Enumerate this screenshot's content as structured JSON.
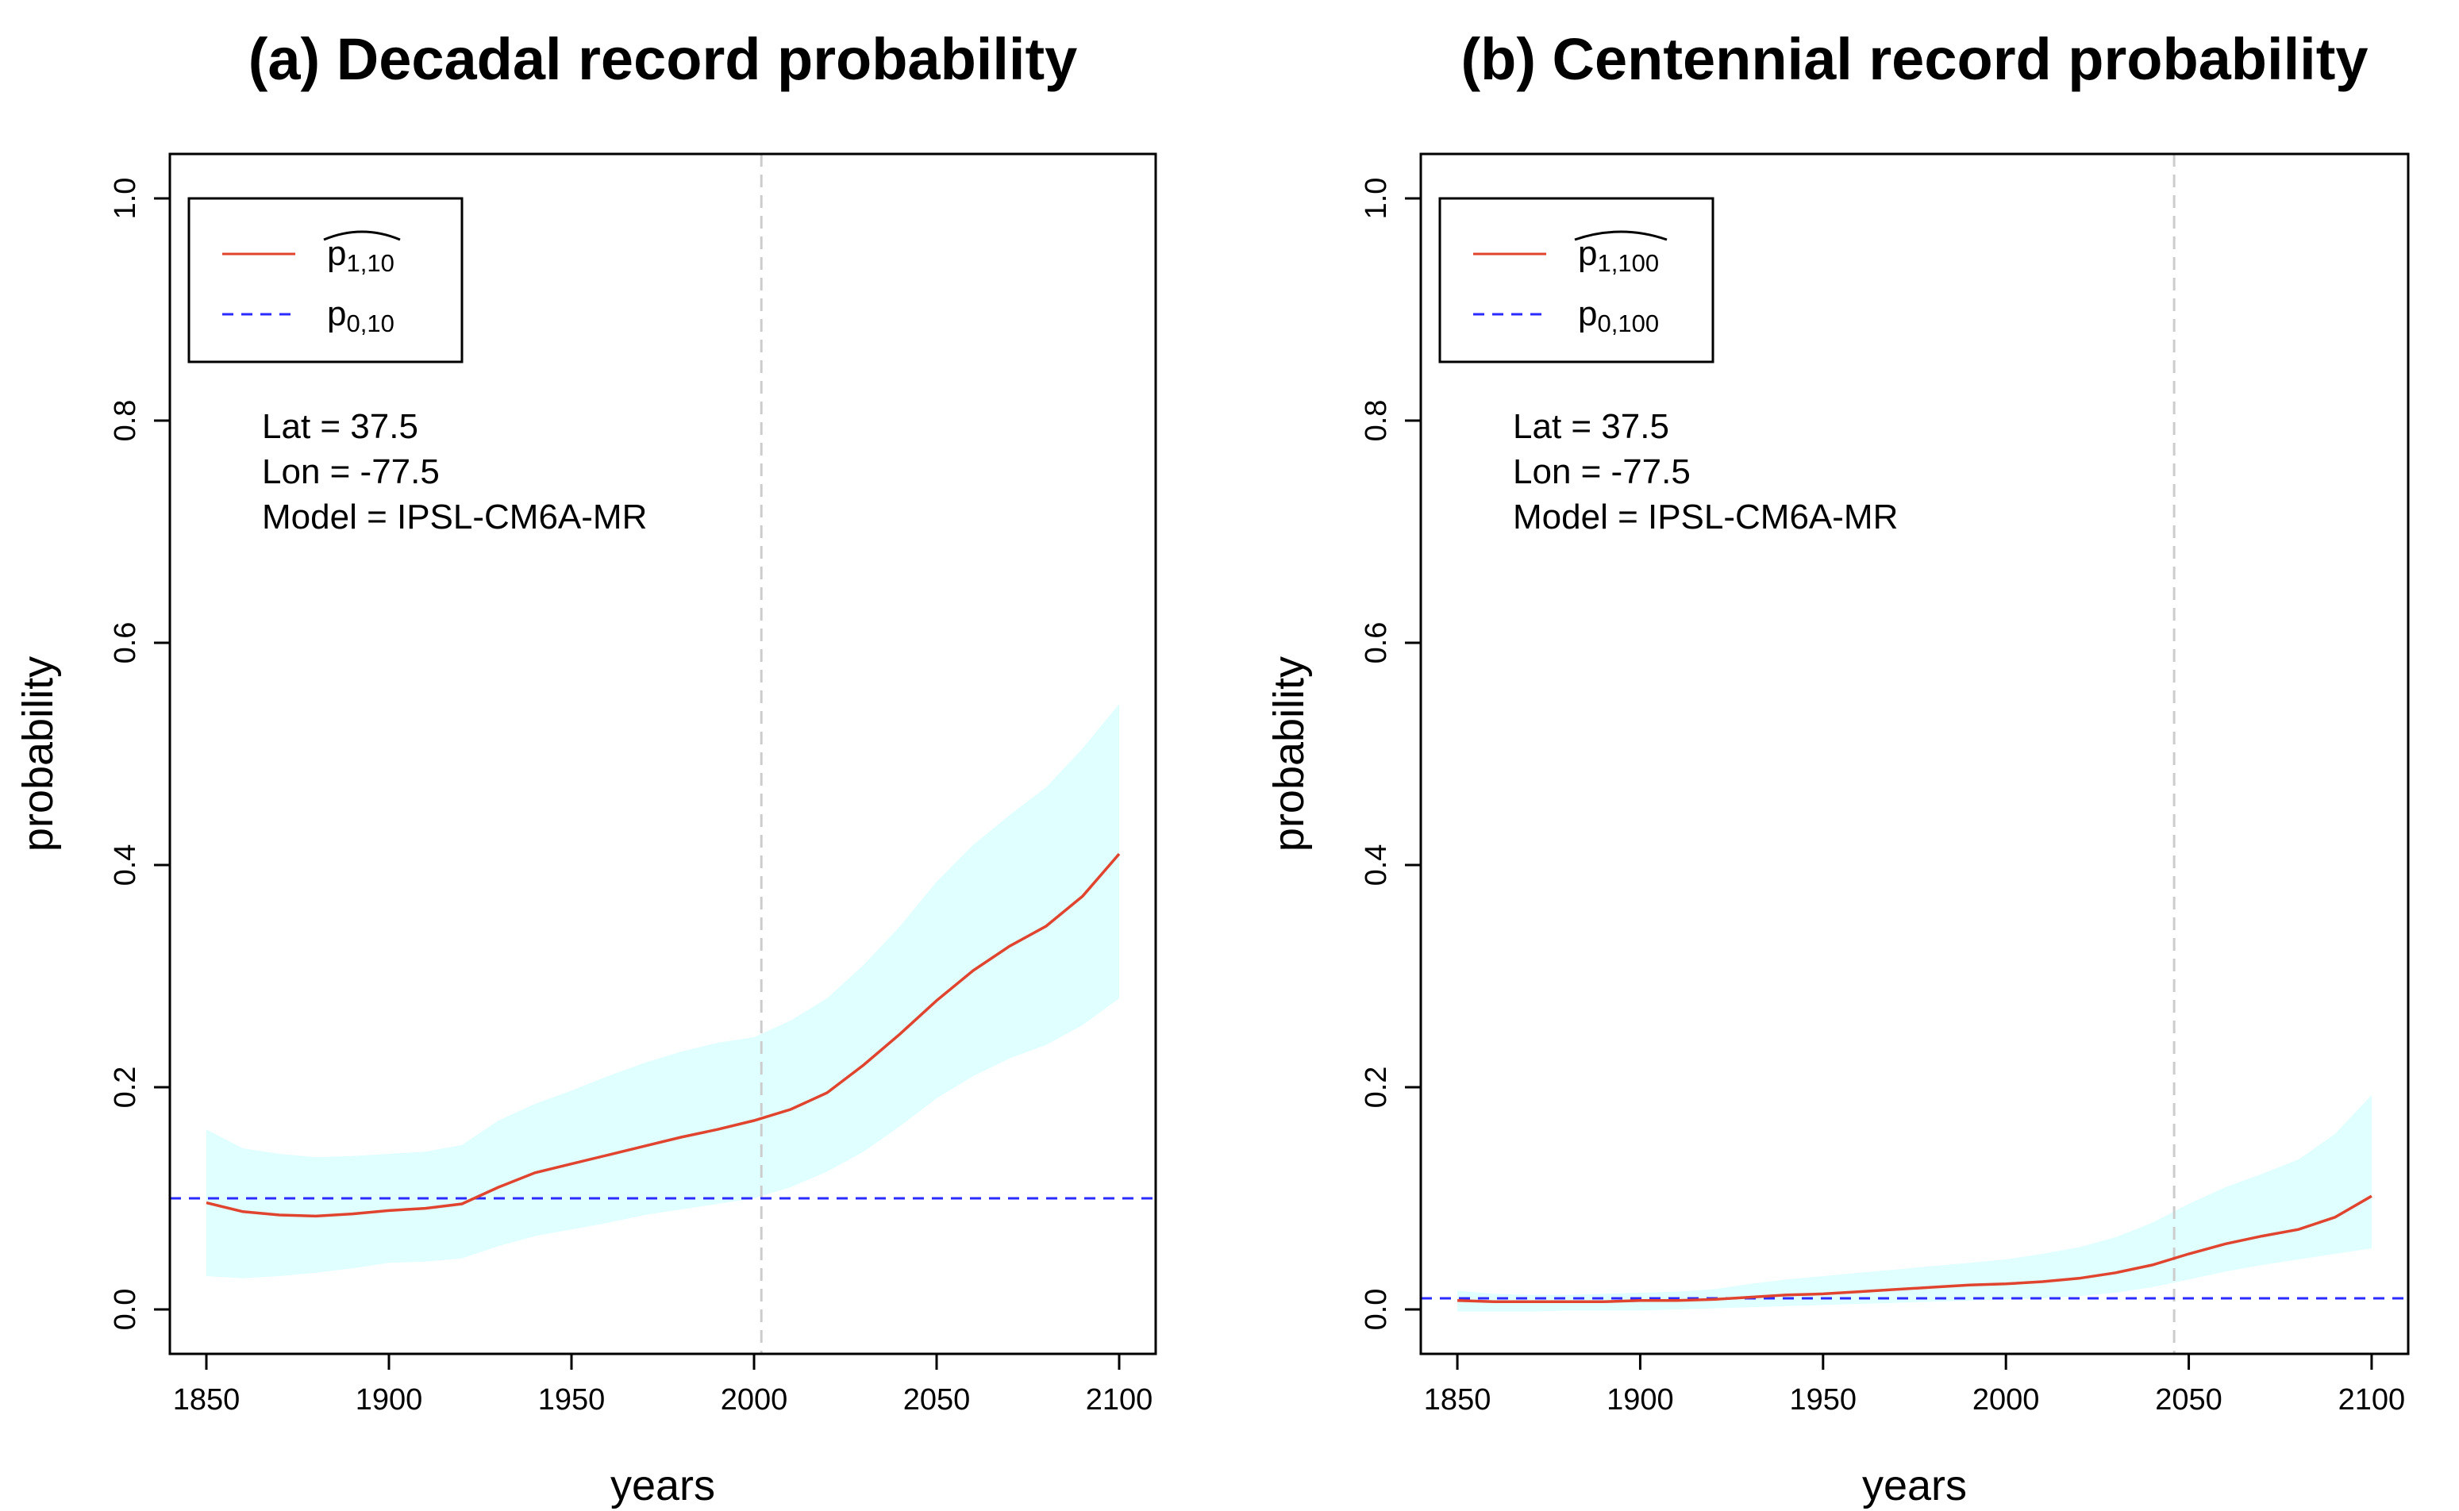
{
  "figure": {
    "xlabel": "years",
    "ylabel": "probability"
  },
  "chart_data": [
    {
      "type": "line",
      "title": "(a) Decadal record probability",
      "xlabel": "years",
      "ylabel": "probability",
      "xlim": [
        1840,
        2110
      ],
      "ylim": [
        -0.04,
        1.04
      ],
      "x_ticks": [
        "1850",
        "1900",
        "1950",
        "2000",
        "2050",
        "2100"
      ],
      "y_ticks": [
        "0.0",
        "0.2",
        "0.4",
        "0.6",
        "0.8",
        "1.0"
      ],
      "annotations": [
        "Lat = 37.5",
        "Lon = -77.5",
        "Model = IPSL-CM6A-MR"
      ],
      "legend": {
        "position": "top-left",
        "entries": [
          {
            "symbol": "p",
            "subscript": "1,10",
            "hat": true,
            "style": "solid",
            "color": "#e0442f"
          },
          {
            "symbol": "p",
            "subscript": "0,10",
            "hat": false,
            "style": "dashed",
            "color": "#2b2bff"
          }
        ]
      },
      "vline": {
        "x": 2002,
        "color": "#cccccc",
        "style": "dashed"
      },
      "hline": {
        "y": 0.1,
        "color": "#2b2bff",
        "style": "dashed"
      },
      "x": [
        1850,
        1860,
        1870,
        1880,
        1890,
        1900,
        1910,
        1920,
        1930,
        1940,
        1950,
        1960,
        1970,
        1980,
        1990,
        2000,
        2010,
        2020,
        2030,
        2040,
        2050,
        2060,
        2070,
        2080,
        2090,
        2100
      ],
      "series": [
        {
          "name": "p̂ 1,10",
          "color": "#e0442f",
          "values": [
            0.096,
            0.088,
            0.085,
            0.084,
            0.086,
            0.089,
            0.091,
            0.095,
            0.11,
            0.123,
            0.131,
            0.139,
            0.147,
            0.155,
            0.162,
            0.17,
            0.18,
            0.195,
            0.22,
            0.248,
            0.278,
            0.305,
            0.327,
            0.345,
            0.372,
            0.41
          ]
        }
      ],
      "band": {
        "color": "#e0ffff",
        "upper": [
          0.162,
          0.145,
          0.14,
          0.137,
          0.138,
          0.14,
          0.142,
          0.148,
          0.17,
          0.185,
          0.197,
          0.21,
          0.222,
          0.232,
          0.24,
          0.245,
          0.26,
          0.28,
          0.31,
          0.345,
          0.385,
          0.418,
          0.445,
          0.47,
          0.505,
          0.545
        ],
        "lower": [
          0.03,
          0.028,
          0.03,
          0.033,
          0.037,
          0.042,
          0.043,
          0.046,
          0.057,
          0.066,
          0.072,
          0.078,
          0.085,
          0.09,
          0.095,
          0.1,
          0.11,
          0.124,
          0.142,
          0.165,
          0.19,
          0.21,
          0.226,
          0.238,
          0.256,
          0.28
        ]
      }
    },
    {
      "type": "line",
      "title": "(b) Centennial record probability",
      "xlabel": "years",
      "ylabel": "probability",
      "xlim": [
        1840,
        2110
      ],
      "ylim": [
        -0.04,
        1.04
      ],
      "x_ticks": [
        "1850",
        "1900",
        "1950",
        "2000",
        "2050",
        "2100"
      ],
      "y_ticks": [
        "0.0",
        "0.2",
        "0.4",
        "0.6",
        "0.8",
        "1.0"
      ],
      "annotations": [
        "Lat = 37.5",
        "Lon = -77.5",
        "Model = IPSL-CM6A-MR"
      ],
      "legend": {
        "position": "top-left",
        "entries": [
          {
            "symbol": "p",
            "subscript": "1,100",
            "hat": true,
            "style": "solid",
            "color": "#e0442f"
          },
          {
            "symbol": "p",
            "subscript": "0,100",
            "hat": false,
            "style": "dashed",
            "color": "#2b2bff"
          }
        ]
      },
      "vline": {
        "x": 2046,
        "color": "#cccccc",
        "style": "dashed"
      },
      "hline": {
        "y": 0.01,
        "color": "#2b2bff",
        "style": "dashed"
      },
      "x": [
        1850,
        1860,
        1870,
        1880,
        1890,
        1900,
        1910,
        1920,
        1930,
        1940,
        1950,
        1960,
        1970,
        1980,
        1990,
        2000,
        2010,
        2020,
        2030,
        2040,
        2050,
        2060,
        2070,
        2080,
        2090,
        2100
      ],
      "series": [
        {
          "name": "p̂ 1,100",
          "color": "#e0442f",
          "values": [
            0.008,
            0.007,
            0.007,
            0.007,
            0.007,
            0.008,
            0.008,
            0.009,
            0.011,
            0.013,
            0.014,
            0.016,
            0.018,
            0.02,
            0.022,
            0.023,
            0.025,
            0.028,
            0.033,
            0.04,
            0.05,
            0.059,
            0.066,
            0.072,
            0.083,
            0.102
          ]
        }
      ],
      "band": {
        "color": "#e0ffff",
        "upper": [
          0.017,
          0.014,
          0.013,
          0.013,
          0.014,
          0.015,
          0.016,
          0.018,
          0.023,
          0.027,
          0.03,
          0.033,
          0.036,
          0.039,
          0.042,
          0.045,
          0.05,
          0.056,
          0.065,
          0.078,
          0.095,
          0.11,
          0.122,
          0.135,
          0.158,
          0.193
        ],
        "lower": [
          -0.002,
          -0.002,
          -0.002,
          -0.001,
          -0.001,
          -0.001,
          0,
          0.001,
          0.002,
          0.003,
          0.004,
          0.005,
          0.006,
          0.007,
          0.008,
          0.009,
          0.01,
          0.012,
          0.015,
          0.02,
          0.027,
          0.034,
          0.04,
          0.045,
          0.05,
          0.055
        ]
      }
    }
  ]
}
